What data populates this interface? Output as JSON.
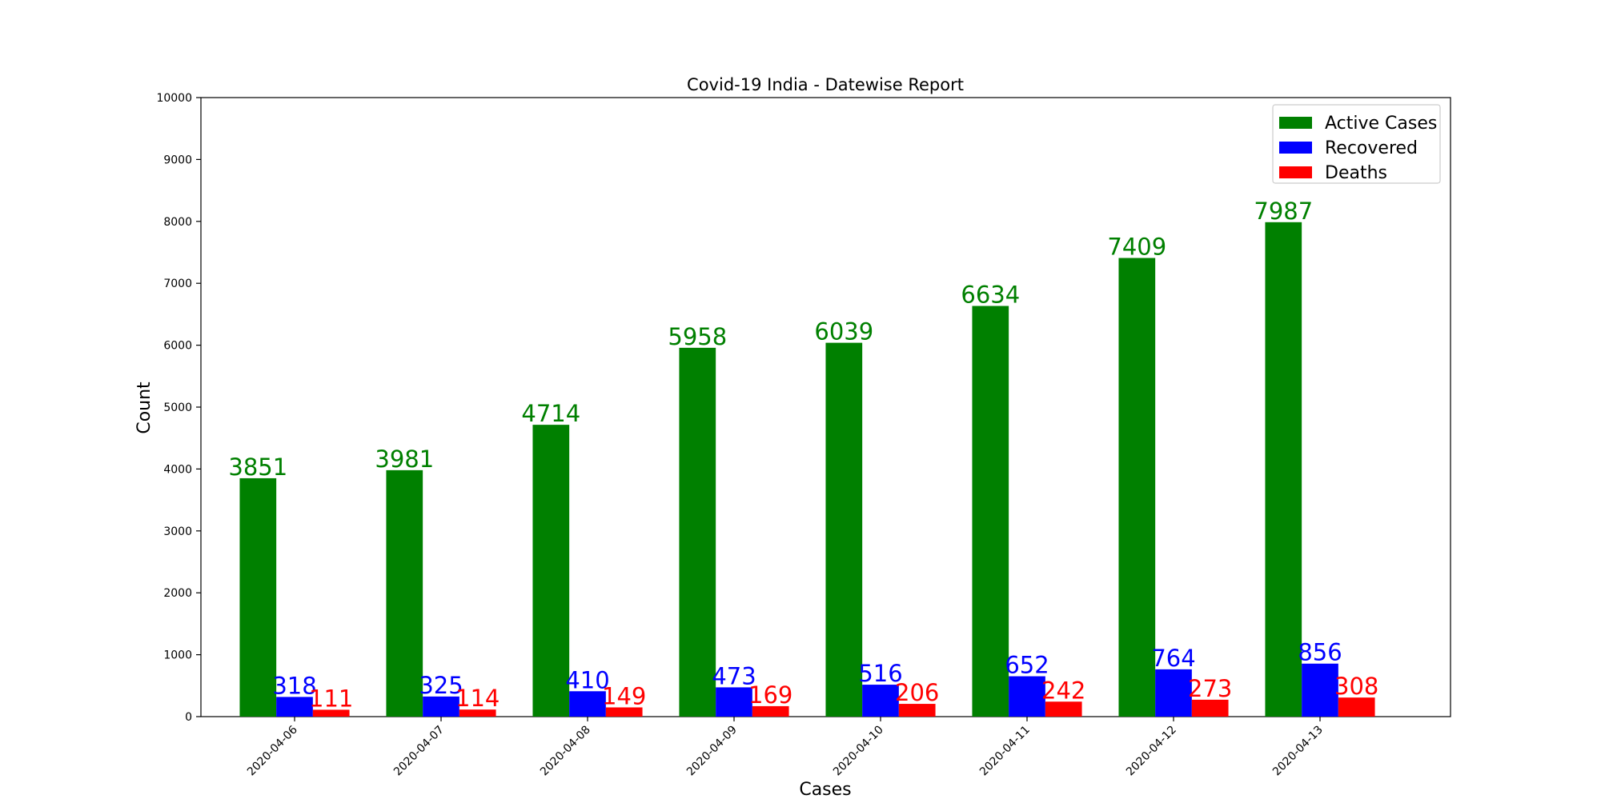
{
  "chart_data": {
    "type": "bar",
    "title": "Covid-19 India - Datewise Report",
    "xlabel": "Cases",
    "ylabel": "Count",
    "ylim": [
      0,
      10000
    ],
    "yticks": [
      0,
      1000,
      2000,
      3000,
      4000,
      5000,
      6000,
      7000,
      8000,
      9000,
      10000
    ],
    "categories": [
      "2020-04-06",
      "2020-04-07",
      "2020-04-08",
      "2020-04-09",
      "2020-04-10",
      "2020-04-11",
      "2020-04-12",
      "2020-04-13"
    ],
    "series": [
      {
        "name": "Active Cases",
        "color": "#008000",
        "values": [
          3851,
          3981,
          4714,
          5958,
          6039,
          6634,
          7409,
          7987
        ]
      },
      {
        "name": "Recovered",
        "color": "#0000ff",
        "values": [
          318,
          325,
          410,
          473,
          516,
          652,
          764,
          856
        ]
      },
      {
        "name": "Deaths",
        "color": "#ff0000",
        "values": [
          111,
          114,
          149,
          169,
          206,
          242,
          273,
          308
        ]
      }
    ],
    "grid": false,
    "legend_position": "top-right"
  }
}
